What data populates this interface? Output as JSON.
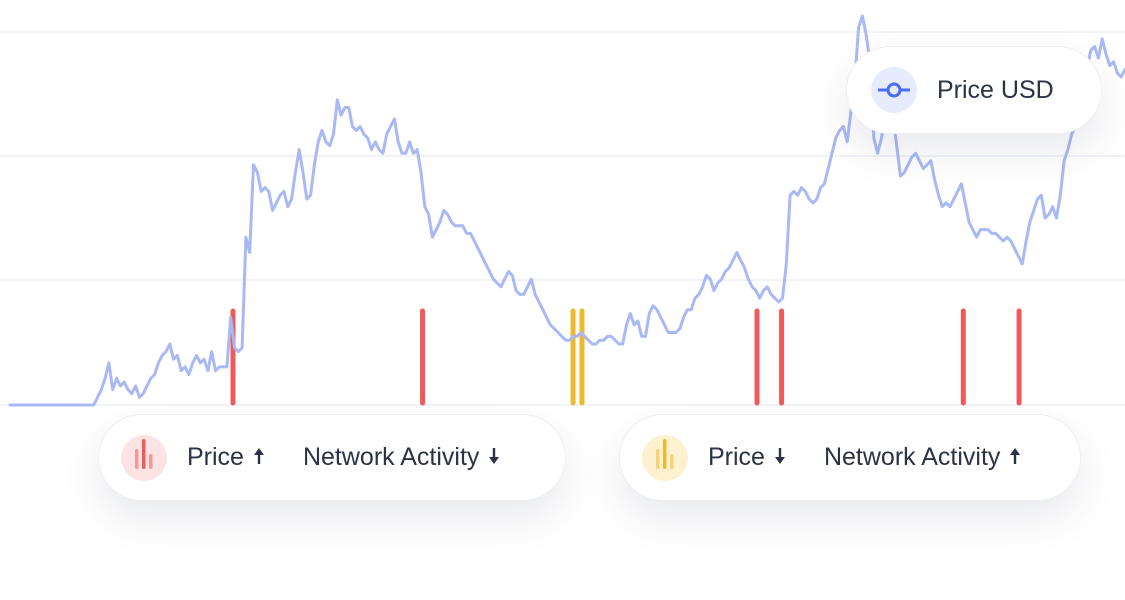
{
  "chart_data": {
    "type": "line",
    "series": [
      {
        "name": "Price USD",
        "color": "#a9b9f5",
        "values": [
          0,
          0,
          0,
          0,
          0,
          0,
          0,
          0,
          0,
          0,
          0,
          0,
          0,
          0,
          0,
          0,
          0,
          0,
          0,
          0,
          0,
          0,
          0,
          2,
          4,
          7,
          11,
          4,
          7,
          5,
          6,
          4,
          3,
          5,
          2,
          3,
          5,
          7,
          8,
          11,
          13,
          14,
          16,
          12,
          13,
          9,
          10,
          8,
          11,
          13,
          11,
          12,
          9,
          14,
          9,
          10,
          10,
          10,
          23,
          15,
          14,
          15,
          44,
          40,
          63,
          61,
          56,
          57,
          56,
          51,
          53,
          55,
          56,
          52,
          54,
          61,
          67,
          61,
          54,
          55,
          63,
          69,
          72,
          69,
          68,
          71,
          80,
          76,
          78,
          78,
          73,
          72,
          73,
          71,
          70,
          67,
          69,
          67,
          66,
          71,
          73,
          75,
          69,
          66,
          66,
          69,
          66,
          67,
          61,
          52,
          50,
          44,
          46,
          48,
          51,
          50,
          48,
          47,
          47,
          47,
          45,
          45,
          43,
          41,
          39,
          37,
          35,
          33,
          32,
          31,
          33,
          35,
          34,
          30,
          29,
          29,
          31,
          33,
          29,
          27,
          25,
          23,
          21,
          20,
          19,
          18,
          17,
          17,
          18,
          18,
          19,
          18,
          17,
          16,
          16,
          17,
          17,
          18,
          18,
          17,
          16,
          16,
          21,
          24,
          21,
          22,
          18,
          18,
          24,
          26,
          25,
          23,
          21,
          19,
          19,
          19,
          20,
          23,
          25,
          25,
          28,
          29,
          31,
          34,
          33,
          30,
          32,
          33,
          35,
          36,
          38,
          40,
          38,
          36,
          33,
          31,
          30,
          28,
          30,
          31,
          29,
          28,
          27,
          28,
          37,
          55,
          56,
          55,
          57,
          56,
          54,
          53,
          54,
          57,
          58,
          62,
          66,
          70,
          72,
          73,
          69,
          77,
          85,
          99,
          102,
          97,
          90,
          70,
          66,
          70,
          76,
          83,
          76,
          68,
          60,
          61,
          63,
          65,
          66,
          64,
          62,
          63,
          64,
          59,
          55,
          52,
          53,
          52,
          54,
          56,
          58,
          53,
          48,
          46,
          44,
          46,
          46,
          46,
          45,
          45,
          44,
          43,
          44,
          43,
          41,
          39,
          37,
          43,
          48,
          51,
          54,
          55,
          49,
          50,
          52,
          49,
          55,
          64,
          67,
          71,
          73,
          75,
          80,
          88,
          93,
          94,
          91,
          96,
          92,
          89,
          90,
          87,
          86,
          88
        ]
      }
    ],
    "legend": {
      "label": "Price USD",
      "placement": "top-right"
    },
    "grid": true,
    "annotations": [
      {
        "x": 0.2,
        "color": "#f05a5b",
        "type": "signal-red"
      },
      {
        "x": 0.37,
        "color": "#f05a5b",
        "type": "signal-red"
      },
      {
        "x": 0.505,
        "color": "#eeb92f",
        "type": "signal-yellow"
      },
      {
        "x": 0.513,
        "color": "#eeb92f",
        "type": "signal-yellow"
      },
      {
        "x": 0.67,
        "color": "#f05a5b",
        "type": "signal-red"
      },
      {
        "x": 0.692,
        "color": "#f05a5b",
        "type": "signal-red"
      },
      {
        "x": 0.855,
        "color": "#f05a5b",
        "type": "signal-red"
      },
      {
        "x": 0.905,
        "color": "#f05a5b",
        "type": "signal-red"
      }
    ]
  },
  "legend_top": {
    "label": "Price USD",
    "icon": "line-node-icon",
    "accent": "#4a6cf7",
    "badge_bg": "#e6ecfe"
  },
  "signal_cards": [
    {
      "price_label": "Price",
      "price_direction": "up",
      "activity_label": "Network Activity",
      "activity_direction": "down",
      "icon": "bars-icon",
      "accent": "#f05a5b",
      "badge_bg": "#fde3e3"
    },
    {
      "price_label": "Price",
      "price_direction": "down",
      "activity_label": "Network Activity",
      "activity_direction": "up",
      "icon": "bars-icon",
      "accent": "#eeb92f",
      "badge_bg": "#fdf1cf"
    }
  ],
  "colors": {
    "line": "#a9b9f5",
    "grid": "#f2f3f7",
    "red": "#f05a5b",
    "yellow": "#eeb92f",
    "text": "#2c3345"
  }
}
